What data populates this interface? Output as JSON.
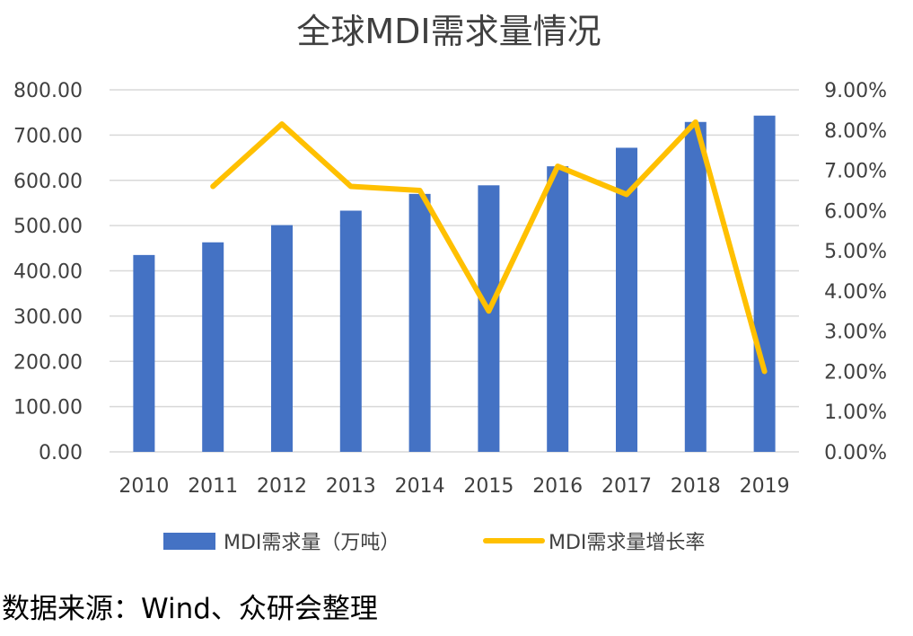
{
  "source_note": "数据来源：Wind、众研会整理",
  "colors": {
    "bar": "#4472C4",
    "line": "#FFC000",
    "grid": "#D9D9D9",
    "text": "#404040"
  },
  "chart_data": {
    "type": "bar",
    "title": "全球MDI需求量情况",
    "categories": [
      "2010",
      "2011",
      "2012",
      "2013",
      "2014",
      "2015",
      "2016",
      "2017",
      "2018",
      "2019"
    ],
    "y_left": {
      "min": 0,
      "max": 800,
      "step": 100,
      "tick_labels": [
        "0.00",
        "100.00",
        "200.00",
        "300.00",
        "400.00",
        "500.00",
        "600.00",
        "700.00",
        "800.00"
      ]
    },
    "y_right": {
      "min": 0,
      "max": 9,
      "step": 1,
      "tick_labels": [
        "0.00%",
        "1.00%",
        "2.00%",
        "3.00%",
        "4.00%",
        "5.00%",
        "6.00%",
        "7.00%",
        "8.00%",
        "9.00%"
      ]
    },
    "grid": true,
    "legend_position": "bottom",
    "series": [
      {
        "name": "MDI需求量（万吨）",
        "type": "bar",
        "axis": "left",
        "values": [
          435,
          463,
          501,
          533,
          570,
          589,
          631,
          672,
          729,
          743
        ]
      },
      {
        "name": "MDI需求量增长率",
        "type": "line",
        "axis": "right",
        "values": [
          null,
          6.6,
          8.15,
          6.6,
          6.5,
          3.5,
          7.1,
          6.4,
          8.2,
          2.0
        ]
      }
    ]
  }
}
